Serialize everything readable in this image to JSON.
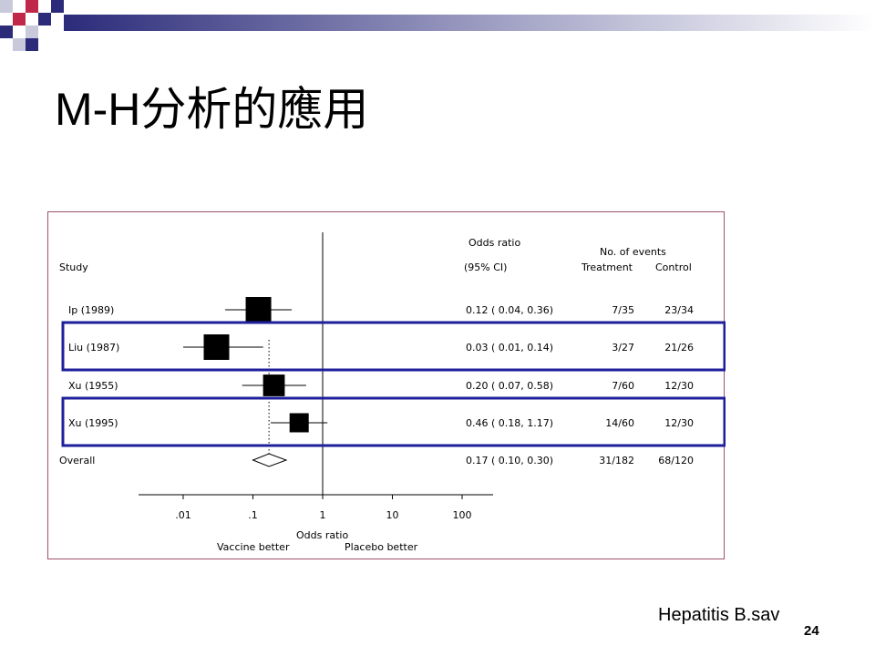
{
  "slide": {
    "title": "M-H分析的應用",
    "footer_label": "Hepatitis B.sav",
    "page_number": "24"
  },
  "colors": {
    "highlight_box": "#1f1f9c",
    "figure_border": "#a0506e",
    "corner_dark": "#2b2b7a",
    "corner_red": "#c0284a"
  },
  "chart_data": {
    "type": "forest",
    "headers": {
      "study": "Study",
      "or_title": "Odds ratio",
      "ci": "(95% CI)",
      "events": "No. of events",
      "treatment": "Treatment",
      "control": "Control"
    },
    "x_scale": "log",
    "xlim": [
      0.005,
      200
    ],
    "reference_line": 1,
    "pooled_line": 0.17,
    "ticks": [
      {
        "value": 0.01,
        "label": ".01"
      },
      {
        "value": 0.1,
        "label": ".1"
      },
      {
        "value": 1,
        "label": "1"
      },
      {
        "value": 10,
        "label": "10"
      },
      {
        "value": 100,
        "label": "100"
      }
    ],
    "xlabel": "Odds ratio",
    "favours_left": "Vaccine better",
    "favours_right": "Placebo better",
    "studies": [
      {
        "name": "Ip (1989)",
        "or": 0.12,
        "lo": 0.04,
        "hi": 0.36,
        "ci_text": "0.12 ( 0.04, 0.36)",
        "treatment": "7/35",
        "control": "23/34",
        "weight": 1.0,
        "highlighted": false
      },
      {
        "name": "Liu (1987)",
        "or": 0.03,
        "lo": 0.01,
        "hi": 0.14,
        "ci_text": "0.03 ( 0.01, 0.14)",
        "treatment": "3/27",
        "control": "21/26",
        "weight": 1.0,
        "highlighted": true
      },
      {
        "name": "Xu (1955)",
        "or": 0.2,
        "lo": 0.07,
        "hi": 0.58,
        "ci_text": "0.20 ( 0.07, 0.58)",
        "treatment": "7/60",
        "control": "12/30",
        "weight": 0.85,
        "highlighted": false
      },
      {
        "name": "Xu (1995)",
        "or": 0.46,
        "lo": 0.18,
        "hi": 1.17,
        "ci_text": "0.46 ( 0.18, 1.17)",
        "treatment": "14/60",
        "control": "12/30",
        "weight": 0.75,
        "highlighted": true
      }
    ],
    "overall": {
      "name": "Overall",
      "or": 0.17,
      "lo": 0.1,
      "hi": 0.3,
      "ci_text": "0.17 ( 0.10, 0.30)",
      "treatment": "31/182",
      "control": "68/120"
    }
  }
}
